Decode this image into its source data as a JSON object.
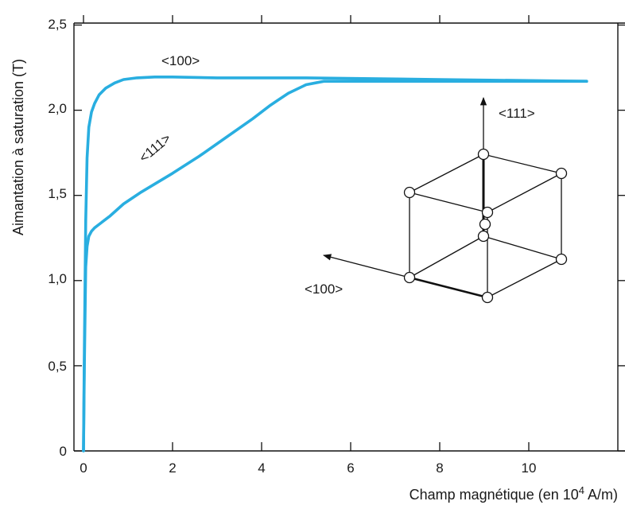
{
  "chart_data": {
    "type": "line",
    "xlabel": "Champ magnétique (en 10",
    "xlabel_exp": "4",
    "xlabel_unit": " A/m)",
    "ylabel": "Aimantation à saturation (T)",
    "xlim": [
      0,
      12
    ],
    "ylim": [
      0,
      2.5
    ],
    "xticks": [
      0,
      2,
      4,
      6,
      8,
      10
    ],
    "xtick_labels": [
      "0",
      "2",
      "4",
      "6",
      "8",
      "10"
    ],
    "yticks": [
      0,
      0.5,
      1.0,
      1.5,
      2.0,
      2.5
    ],
    "ytick_labels": [
      "0",
      "0,5",
      "1,0",
      "1,5",
      "2,0",
      "2,5"
    ],
    "grid": false,
    "line_color": "#29aee0",
    "series": [
      {
        "name": "<100>",
        "x": [
          0,
          0.02,
          0.05,
          0.08,
          0.12,
          0.18,
          0.25,
          0.35,
          0.5,
          0.7,
          0.9,
          1.2,
          1.6,
          2.0,
          3.0,
          5.0,
          8.0,
          11.3
        ],
        "y": [
          0,
          0.6,
          1.35,
          1.72,
          1.9,
          1.99,
          2.04,
          2.09,
          2.13,
          2.16,
          2.18,
          2.19,
          2.195,
          2.195,
          2.19,
          2.19,
          2.18,
          2.17
        ]
      },
      {
        "name": "<111>",
        "x": [
          0,
          0.02,
          0.05,
          0.08,
          0.12,
          0.18,
          0.25,
          0.4,
          0.6,
          0.9,
          1.3,
          2.0,
          2.6,
          3.2,
          3.8,
          4.2,
          4.6,
          5.0,
          5.4,
          6.0,
          8.0,
          11.3
        ],
        "y": [
          0,
          0.5,
          1.08,
          1.2,
          1.26,
          1.29,
          1.31,
          1.34,
          1.38,
          1.45,
          1.52,
          1.63,
          1.73,
          1.84,
          1.95,
          2.03,
          2.1,
          2.15,
          2.17,
          2.17,
          2.17,
          2.17
        ]
      }
    ],
    "annotations": {
      "curve_100": "<100>",
      "curve_111": "<111>",
      "cube_111": "<111>",
      "cube_100": "<100>"
    }
  }
}
